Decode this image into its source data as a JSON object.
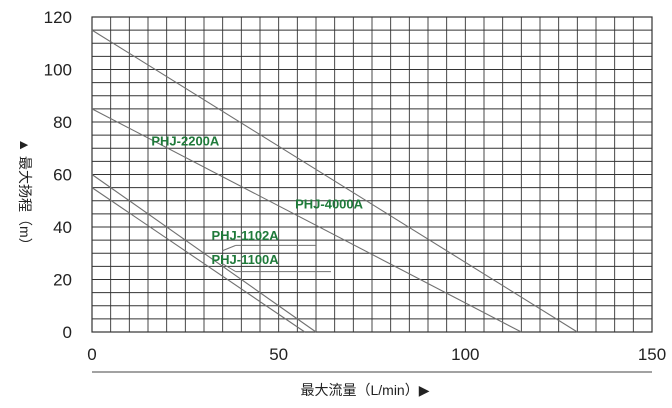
{
  "chart_data": {
    "type": "line",
    "xlabel": "最大流量（L/min）▶",
    "ylabel": "▲ 最大扬程（m）",
    "xlim": [
      0,
      150
    ],
    "ylim": [
      0,
      120
    ],
    "x_ticks": [
      "0",
      "50",
      "100",
      "150"
    ],
    "y_ticks": [
      "0",
      "20",
      "40",
      "60",
      "80",
      "100",
      "120"
    ],
    "grid": true,
    "series": [
      {
        "name": "PHJ-2200A",
        "x": [
          0,
          115
        ],
        "y": [
          85,
          0
        ]
      },
      {
        "name": "PHJ-4000A",
        "x": [
          0,
          130
        ],
        "y": [
          115,
          0
        ]
      },
      {
        "name": "PHJ-1102A",
        "x": [
          0,
          60
        ],
        "y": [
          60,
          0
        ]
      },
      {
        "name": "PHJ-1100A",
        "x": [
          0,
          57
        ],
        "y": [
          55,
          0
        ]
      }
    ],
    "line_color": "#707070",
    "label_color": "#1f7a3a"
  }
}
